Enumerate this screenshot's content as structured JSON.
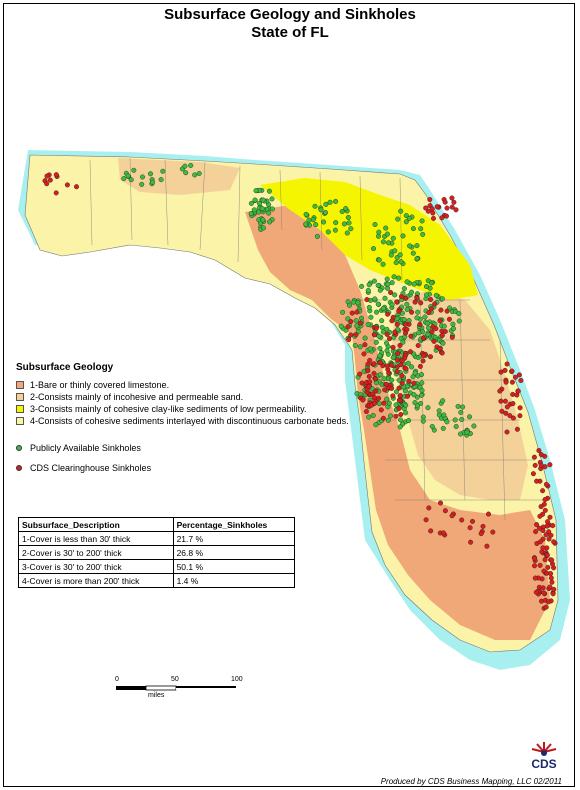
{
  "title": {
    "line1": "Subsurface Geology and Sinkholes",
    "line2": "State of FL"
  },
  "colors": {
    "limestone": "#f0a878",
    "sand": "#f5d19a",
    "clay": "#f5f500",
    "cohesive": "#faf3a8",
    "water": "#a8f0f0",
    "public_sinkhole": "#3dbb3d",
    "cds_sinkhole": "#d81e1e"
  },
  "legend": {
    "heading": "Subsurface Geology",
    "items": [
      {
        "label": "1-Bare or thinly covered limestone.",
        "color": "#f0a878"
      },
      {
        "label": "2-Consists mainly of incohesive and permeable sand.",
        "color": "#f5d19a"
      },
      {
        "label": "3-Consists mainly of cohesive clay-like sediments of low permeability.",
        "color": "#f5f500"
      },
      {
        "label": "4-Consists of cohesive sediments interlayed with discontinuous carbonate beds.",
        "color": "#faf3a8"
      }
    ],
    "public_label": "Publicly Available Sinkholes",
    "cds_label": "CDS Clearinghouse Sinkholes"
  },
  "table": {
    "headers": [
      "Subsurface_Description",
      "Percentage_Sinkholes"
    ],
    "rows": [
      [
        "1-Cover is less than 30' thick",
        "21.7 %"
      ],
      [
        "2-Cover is 30' to 200' thick",
        "26.8 %"
      ],
      [
        "3-Cover is 30' to 200' thick",
        "50.1 %"
      ],
      [
        "4-Cover is more than 200' thick",
        "1.4 %"
      ]
    ]
  },
  "scale": {
    "ticks": [
      "0",
      "50",
      "100"
    ],
    "unit": "miles"
  },
  "footer": "Produced by CDS Business Mapping, LLC 02/2011",
  "logo_text": "CDS"
}
